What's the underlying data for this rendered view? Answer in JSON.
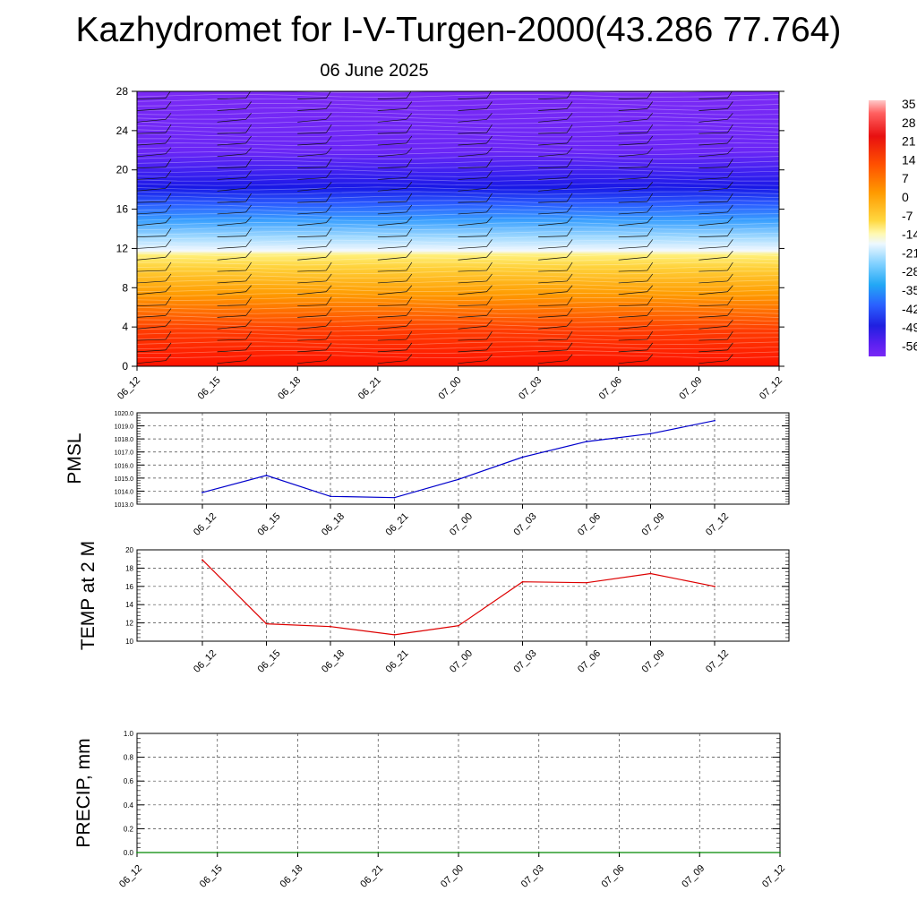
{
  "header": {
    "title": "Kazhydromet for I-V-Turgen-2000(43.286 77.764)",
    "date": "06 June 2025"
  },
  "chart_data": [
    {
      "type": "heatmap",
      "name": "vertical-profile",
      "x_ticks": [
        "06_12",
        "06_15",
        "06_18",
        "06_21",
        "07_00",
        "07_03",
        "07_06",
        "07_09",
        "07_12"
      ],
      "y_ticks": [
        0,
        4,
        8,
        12,
        16,
        20,
        24,
        28
      ],
      "ylim": [
        0,
        28
      ],
      "colorbar": {
        "labels": [
          "35",
          "28",
          "21",
          "14",
          "7",
          "0",
          "-7",
          "-14",
          "-21",
          "-28",
          "-35",
          "-42",
          "-49",
          "-56"
        ],
        "range": [
          -56,
          35
        ]
      }
    },
    {
      "type": "line",
      "ylabel": "PMSL",
      "categories": [
        "06_12",
        "06_15",
        "06_18",
        "06_21",
        "07_00",
        "07_03",
        "07_06",
        "07_09",
        "07_12"
      ],
      "values": [
        1013.9,
        1015.2,
        1013.6,
        1013.5,
        1014.9,
        1016.6,
        1017.8,
        1018.4,
        1019.4
      ],
      "ylim": [
        1013.0,
        1020.0
      ],
      "y_ticks": [
        "1013.0",
        "1014.0",
        "1015.0",
        "1016.0",
        "1017.0",
        "1018.0",
        "1019.0",
        "1020.0"
      ],
      "color": "#0000cc"
    },
    {
      "type": "line",
      "ylabel": "TEMP at 2 M",
      "categories": [
        "06_12",
        "06_15",
        "06_18",
        "06_21",
        "07_00",
        "07_03",
        "07_06",
        "07_09",
        "07_12"
      ],
      "values": [
        18.9,
        11.9,
        11.6,
        10.7,
        11.7,
        16.5,
        16.4,
        17.4,
        16.0
      ],
      "ylim": [
        10,
        20
      ],
      "y_ticks": [
        "10",
        "12",
        "14",
        "16",
        "18",
        "20"
      ],
      "color": "#dd0000"
    },
    {
      "type": "line",
      "ylabel": "PRECIP, mm",
      "categories": [
        "06_12",
        "06_15",
        "06_18",
        "06_21",
        "07_00",
        "07_03",
        "07_06",
        "07_09",
        "07_12"
      ],
      "values": [
        0,
        0,
        0,
        0,
        0,
        0,
        0,
        0,
        0
      ],
      "ylim": [
        0,
        1.0
      ],
      "y_ticks": [
        "0.0",
        "0.2",
        "0.4",
        "0.6",
        "0.8",
        "1.0"
      ],
      "color": "#008800"
    }
  ]
}
